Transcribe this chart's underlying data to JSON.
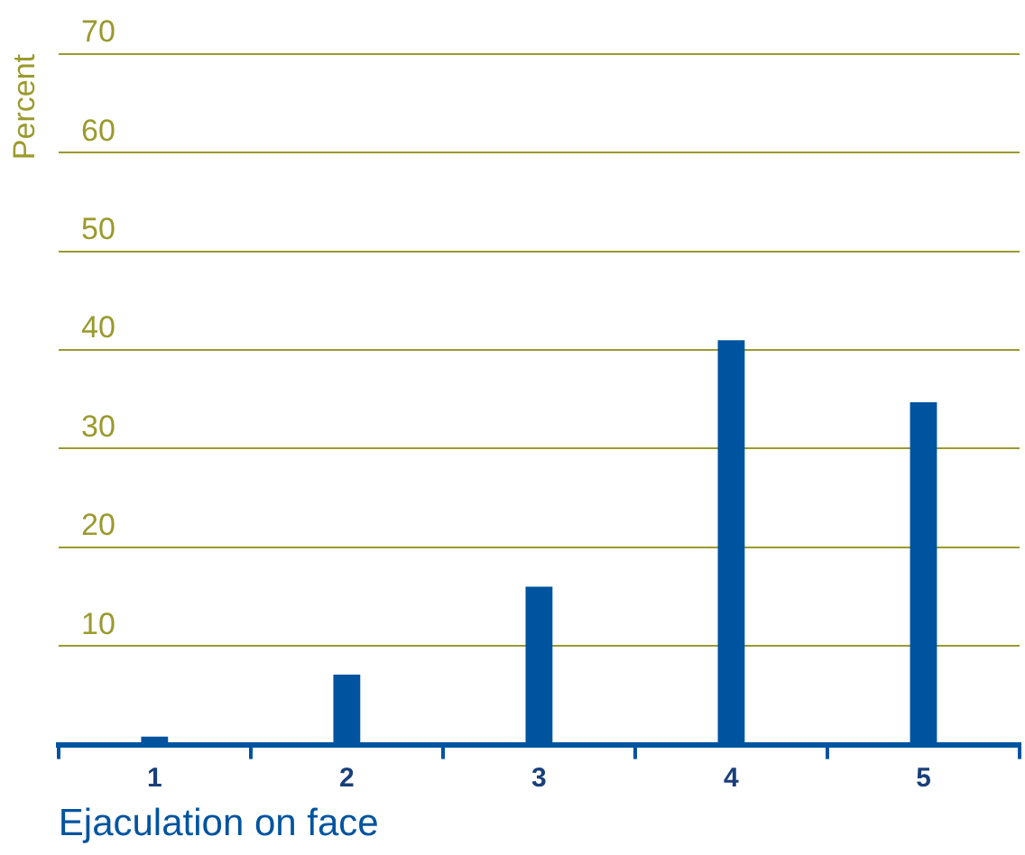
{
  "chart_data": {
    "type": "bar",
    "xlabel": "Ejaculation on face",
    "ylabel": "Percent",
    "categories": [
      "1",
      "2",
      "3",
      "4",
      "5"
    ],
    "values": [
      0.8,
      7.1,
      16,
      41,
      34.7
    ],
    "color": "#00549f",
    "ylim": [
      0,
      70
    ],
    "yticks": [
      {
        "value": 0,
        "label": null
      },
      10,
      20,
      30,
      40,
      50,
      60,
      70
    ],
    "grid": "y",
    "legend": false
  }
}
